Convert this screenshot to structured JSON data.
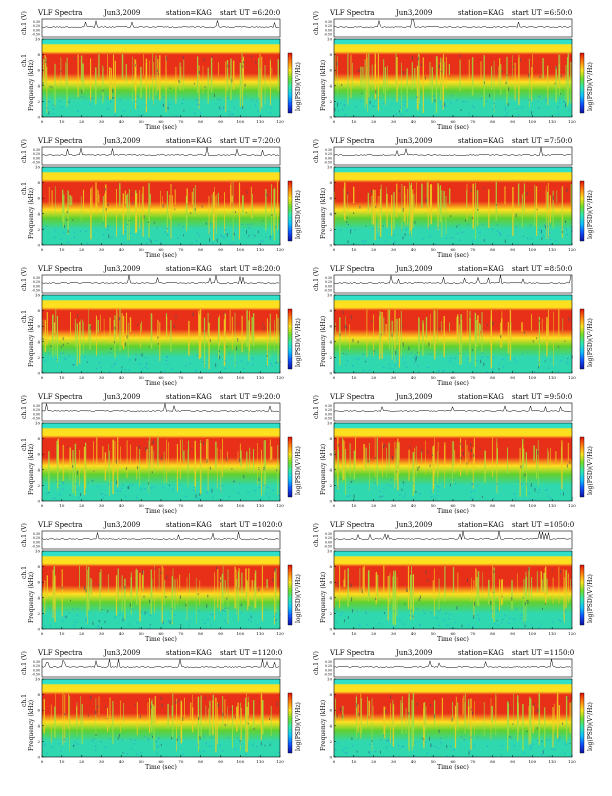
{
  "document": {
    "panel_header": {
      "left": "VLF Spectra",
      "station": "station=KAG",
      "start_prefix": "start  UT  ="
    },
    "labels": {
      "ch1_top": "ch.1 (V)",
      "ch1_side": "ch.1",
      "frequency": "Frequency  (kHz)",
      "time": "Time  (sec)",
      "colorbar": "log(PSD)(V²/Hz)"
    },
    "ticks": {
      "time": [
        "0",
        "10",
        "20",
        "30",
        "40",
        "50",
        "60",
        "70",
        "80",
        "90",
        "100",
        "110",
        "120"
      ],
      "freq": [
        "0",
        "2",
        "4",
        "6",
        "8",
        "10"
      ],
      "ch1": [
        "0.30",
        "0.20",
        "0.00",
        "-0.50"
      ]
    }
  },
  "chart_data": [
    {
      "type": "heatmap",
      "title_date": "Jun3,2009",
      "start_ut": "6:20:0"
    },
    {
      "type": "heatmap",
      "title_date": "Jun3,2009",
      "start_ut": "6:50:0"
    },
    {
      "type": "heatmap",
      "title_date": "Jun3,2009",
      "start_ut": "7:20:0"
    },
    {
      "type": "heatmap",
      "title_date": "Jun3,2009",
      "start_ut": "7:50:0"
    },
    {
      "type": "heatmap",
      "title_date": "Jun3,2009",
      "start_ut": "8:20:0"
    },
    {
      "type": "heatmap",
      "title_date": "Jun3,2009",
      "start_ut": "8:50:0"
    },
    {
      "type": "heatmap",
      "title_date": "Jun3,2009",
      "start_ut": "9:20:0"
    },
    {
      "type": "heatmap",
      "title_date": "Jun3,2009",
      "start_ut": "9:50:0"
    },
    {
      "type": "heatmap",
      "title_date": "Jun3,2009",
      "start_ut": "1020:0"
    },
    {
      "type": "heatmap",
      "title_date": "Jun3,2009",
      "start_ut": "1050:0"
    },
    {
      "type": "heatmap",
      "title_date": "Jun3,2009",
      "start_ut": "1120:0"
    },
    {
      "type": "heatmap",
      "title_date": "Jun3,2009",
      "start_ut": "1150:0"
    }
  ],
  "axes": {
    "x_range": [
      0,
      120
    ],
    "freq_range": [
      0,
      10
    ]
  },
  "colors": {
    "band_top": "#2fe0c8",
    "band_upper": "#ffe020",
    "band_core": "#e83018",
    "band_mid": "#60d030",
    "band_low": "#30d8b0",
    "colorbar": [
      "#1010a0",
      "#1050ff",
      "#10c0ff",
      "#30e8b0",
      "#70e030",
      "#ffe020",
      "#ff8010",
      "#e01010"
    ]
  }
}
